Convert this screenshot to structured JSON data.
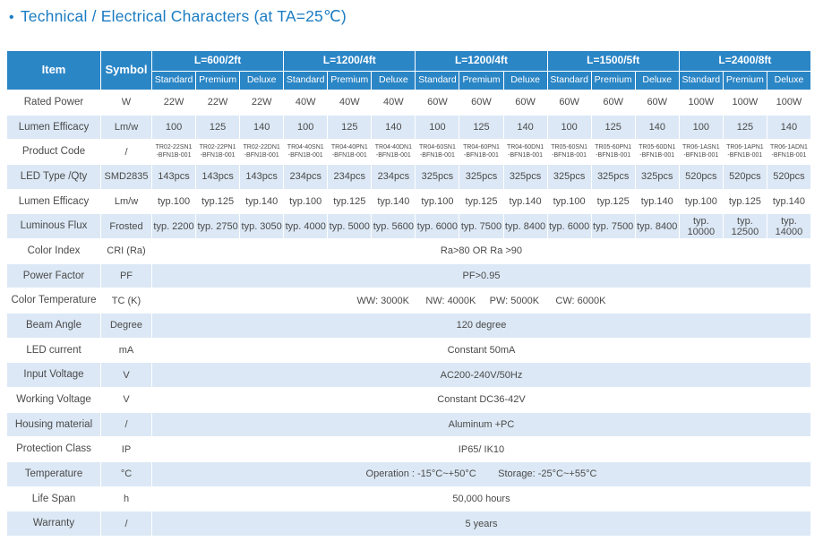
{
  "bullet": "•",
  "title": "Technical / Electrical Characters  (at TA=25℃)",
  "colors": {
    "header_blue": "#2b86c6",
    "row_alt_blue": "#dce8f5",
    "title_blue": "#1b7cc2",
    "body_text": "#4a4a4a"
  },
  "table": {
    "item_header": "Item",
    "symbol_header": "Symbol",
    "groups": [
      {
        "label": "L=600/2ft",
        "subs": [
          "Standard",
          "Premium",
          "Deluxe"
        ]
      },
      {
        "label": "L=1200/4ft",
        "subs": [
          "Standard",
          "Premium",
          "Deluxe"
        ]
      },
      {
        "label": "L=1200/4ft",
        "subs": [
          "Standard",
          "Premium",
          "Deluxe"
        ]
      },
      {
        "label": "L=1500/5ft",
        "subs": [
          "Standard",
          "Premium",
          "Deluxe"
        ]
      },
      {
        "label": "L=2400/8ft",
        "subs": [
          "Standard",
          "Premium",
          "Deluxe"
        ]
      }
    ],
    "rows": [
      {
        "item": "Rated Power",
        "symbol": "W",
        "values": [
          "22W",
          "22W",
          "22W",
          "40W",
          "40W",
          "40W",
          "60W",
          "60W",
          "60W",
          "60W",
          "60W",
          "60W",
          "100W",
          "100W",
          "100W"
        ]
      },
      {
        "item": "Lumen Efficacy",
        "symbol": "Lm/w",
        "values": [
          "100",
          "125",
          "140",
          "100",
          "125",
          "140",
          "100",
          "125",
          "140",
          "100",
          "125",
          "140",
          "100",
          "125",
          "140"
        ]
      },
      {
        "item": "Product Code",
        "symbol": "/",
        "values": [
          "TR02-22SN1\n-BFN1B-001",
          "TR02-22PN1\n-BFN1B-001",
          "TR02-22DN1\n-BFN1B-001",
          "TR04-40SN1\n-BFN1B-001",
          "TR04-40PN1\n-BFN1B-001",
          "TR04-40DN1\n-BFN1B-001",
          "TR04-60SN1\n-BFN1B-001",
          "TR04-60PN1\n-BFN1B-001",
          "TR04-60DN1\n-BFN1B-001",
          "TR05-60SN1\n-BFN1B-001",
          "TR05-60PN1\n-BFN1B-001",
          "TR05-60DN1\n-BFN1B-001",
          "TR06-1ASN1\n-BFN1B-001",
          "TR06-1APN1\n-BFN1B-001",
          "TR06-1ADN1\n-BFN1B-001"
        ]
      },
      {
        "item": "LED Type /Qty",
        "symbol": "SMD2835",
        "values": [
          "143pcs",
          "143pcs",
          "143pcs",
          "234pcs",
          "234pcs",
          "234pcs",
          "325pcs",
          "325pcs",
          "325pcs",
          "325pcs",
          "325pcs",
          "325pcs",
          "520pcs",
          "520pcs",
          "520pcs"
        ]
      },
      {
        "item": "Lumen Efficacy",
        "symbol": "Lm/w",
        "values": [
          "typ.100",
          "typ.125",
          "typ.140",
          "typ.100",
          "typ.125",
          "typ.140",
          "typ.100",
          "typ.125",
          "typ.140",
          "typ.100",
          "typ.125",
          "typ.140",
          "typ.100",
          "typ.125",
          "typ.140"
        ]
      },
      {
        "item": "Luminous Flux",
        "symbol": "Frosted",
        "values": [
          "typ. 2200",
          "typ. 2750",
          "typ. 3050",
          "typ. 4000",
          "typ. 5000",
          "typ. 5600",
          "typ. 6000",
          "typ. 7500",
          "typ. 8400",
          "typ. 6000",
          "typ. 7500",
          "typ. 8400",
          "typ. 10000",
          "typ. 12500",
          "typ. 14000"
        ]
      },
      {
        "item": "Color Index",
        "symbol": "CRI (Ra)",
        "merged": "Ra>80 OR Ra >90"
      },
      {
        "item": "Power Factor",
        "symbol": "PF",
        "merged": "PF>0.95"
      },
      {
        "item": "Color Temperature",
        "symbol": "TC (K)",
        "merged": "WW: 3000K      NW: 4000K     PW: 5000K      CW: 6000K"
      },
      {
        "item": "Beam Angle",
        "symbol": "Degree",
        "merged": "120 degree"
      },
      {
        "item": "LED current",
        "symbol": "mA",
        "merged": "Constant 50mA"
      },
      {
        "item": "Input Voltage",
        "symbol": "V",
        "merged": "AC200-240V/50Hz"
      },
      {
        "item": "Working Voltage",
        "symbol": "V",
        "merged": "Constant DC36-42V"
      },
      {
        "item": "Housing material",
        "symbol": "/",
        "merged": "Aluminum +PC"
      },
      {
        "item": "Protection Class",
        "symbol": "IP",
        "merged": "IP65/ IK10"
      },
      {
        "item": "Temperature",
        "symbol": "°C",
        "merged": "Operation : -15°C~+50°C        Storage: -25°C~+55°C"
      },
      {
        "item": "Life Span",
        "symbol": "h",
        "merged": "50,000 hours"
      },
      {
        "item": "Warranty",
        "symbol": "/",
        "merged": "5 years"
      }
    ]
  }
}
